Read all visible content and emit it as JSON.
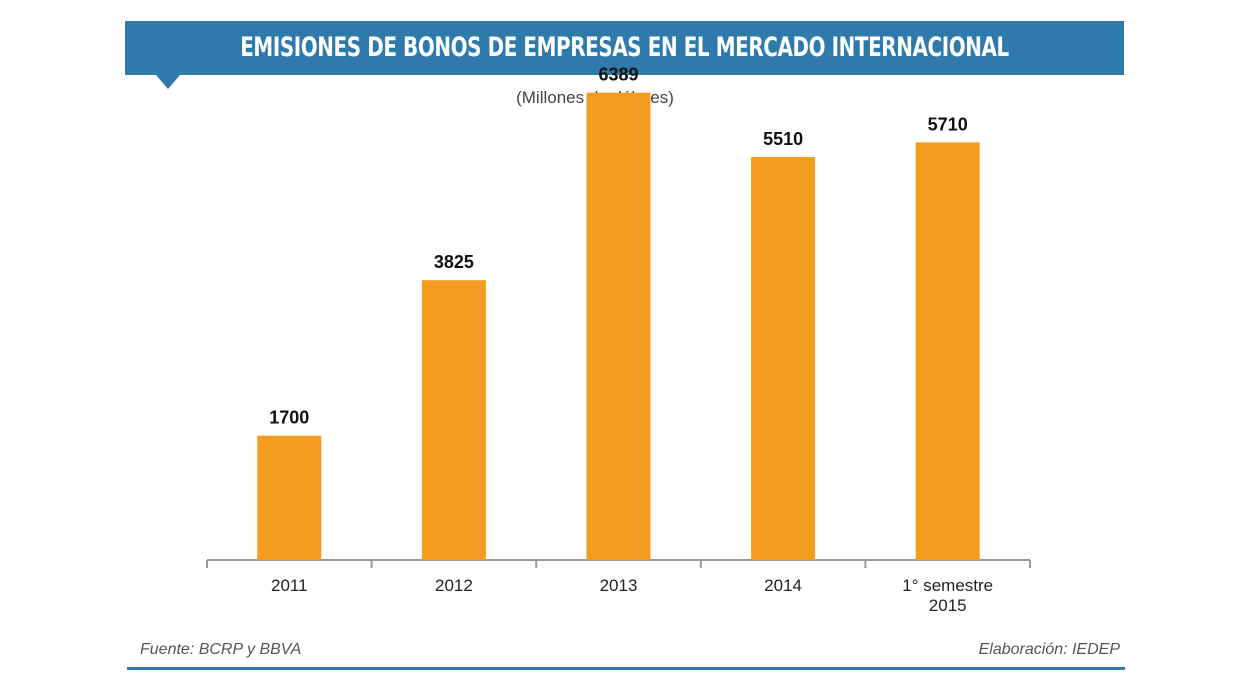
{
  "chart_data": {
    "type": "bar",
    "title": "EMISIONES DE BONOS DE EMPRESAS EN EL MERCADO INTERNACIONAL",
    "subtitle": "(Millones de dólares)",
    "categories": [
      "2011",
      "2012",
      "2013",
      "2014",
      "1° semestre 2015"
    ],
    "values": [
      1700,
      3825,
      6389,
      5510,
      5710
    ],
    "data_labels": [
      "1700",
      "3825",
      "6389",
      "5510",
      "5710"
    ],
    "ylim": [
      0,
      7000
    ],
    "grid": false,
    "bar_color": "#f39c1f",
    "axis_color": "#999999"
  },
  "footer": {
    "source": "Fuente: BCRP y BBVA",
    "credit": "Elaboración: IEDEP"
  },
  "colors": {
    "banner": "#2f79ab",
    "bar": "#f39c1f"
  }
}
